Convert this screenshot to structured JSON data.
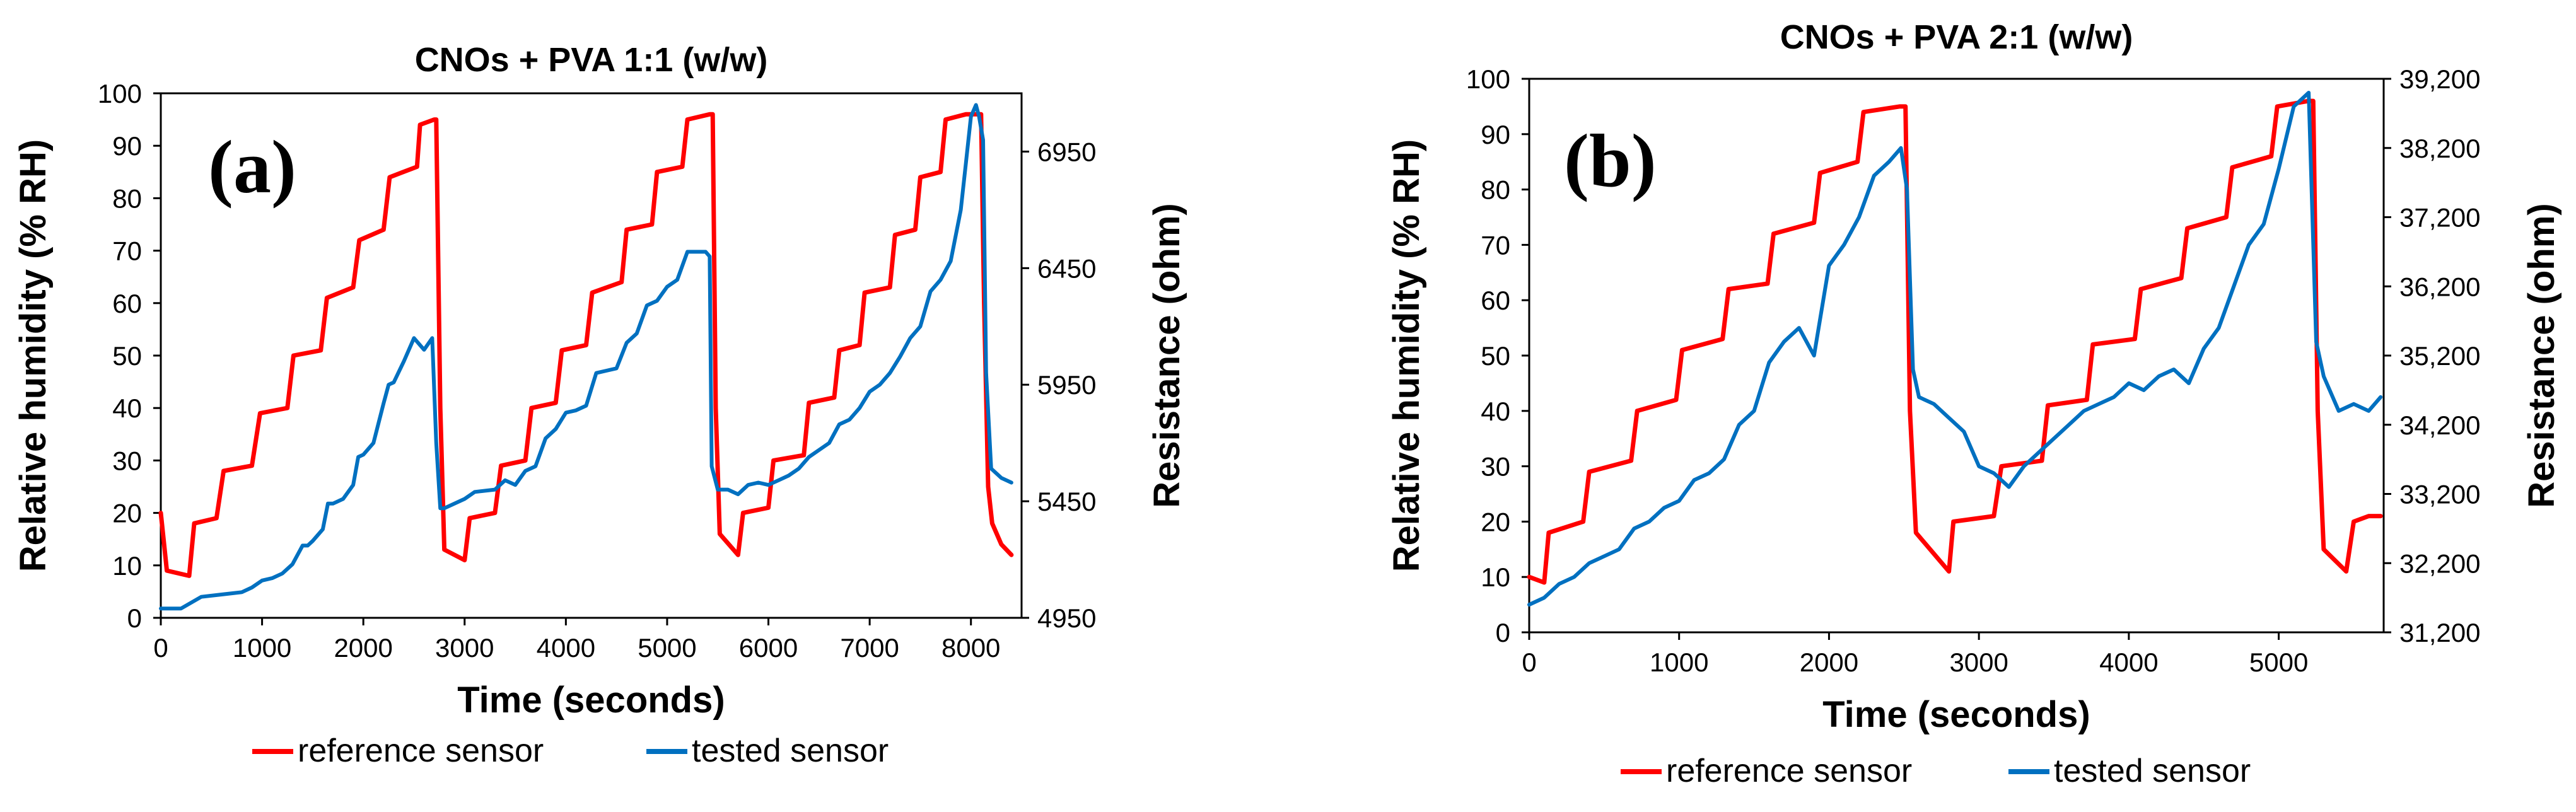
{
  "chart_data": [
    {
      "type": "line",
      "panel_label": "(a)",
      "title": "CNOs + PVA 1:1 (w/w)",
      "xlabel": "Time (seconds)",
      "ylabel": "Relative humidity (% RH)",
      "y2label": "Resistance (ohm)",
      "xlim": [
        0,
        8500
      ],
      "ylim": [
        0,
        100
      ],
      "y2lim": [
        4950,
        7200
      ],
      "x_ticks": [
        "0",
        "1000",
        "2000",
        "3000",
        "4000",
        "5000",
        "6000",
        "7000",
        "8000"
      ],
      "x_tick_values": [
        0,
        1000,
        2000,
        3000,
        4000,
        5000,
        6000,
        7000,
        8000
      ],
      "y_ticks": [
        "0",
        "10",
        "20",
        "30",
        "40",
        "50",
        "60",
        "70",
        "80",
        "90",
        "100"
      ],
      "y_tick_values": [
        0,
        10,
        20,
        30,
        40,
        50,
        60,
        70,
        80,
        90,
        100
      ],
      "y2_ticks": [
        "4950",
        "5450",
        "5950",
        "6450",
        "6950"
      ],
      "y2_tick_values": [
        4950,
        5450,
        5950,
        6450,
        6950
      ],
      "legend": [
        "reference sensor",
        "tested sensor"
      ],
      "legend_position": "bottom",
      "grid": false,
      "series": [
        {
          "name": "reference sensor",
          "axis": "left",
          "color": "#ff0000",
          "x": [
            0,
            60,
            280,
            330,
            550,
            620,
            900,
            980,
            1250,
            1310,
            1580,
            1640,
            1900,
            1960,
            2200,
            2260,
            2530,
            2560,
            2700,
            2720,
            2760,
            2800,
            3000,
            3050,
            3300,
            3360,
            3600,
            3660,
            3900,
            3960,
            4200,
            4260,
            4550,
            4600,
            4850,
            4900,
            5150,
            5200,
            5420,
            5450,
            5480,
            5520,
            5700,
            5750,
            6000,
            6050,
            6350,
            6400,
            6650,
            6700,
            6900,
            6950,
            7200,
            7250,
            7450,
            7500,
            7700,
            7750,
            7950,
            8000,
            8100,
            8130,
            8170,
            8210,
            8300,
            8400
          ],
          "y": [
            20,
            9,
            8,
            18,
            19,
            28,
            29,
            39,
            40,
            50,
            51,
            61,
            63,
            72,
            74,
            84,
            86,
            94,
            95,
            95,
            40,
            13,
            11,
            19,
            20,
            29,
            30,
            40,
            41,
            51,
            52,
            62,
            64,
            74,
            75,
            85,
            86,
            95,
            96,
            96,
            40,
            16,
            12,
            20,
            21,
            30,
            31,
            41,
            42,
            51,
            52,
            62,
            63,
            73,
            74,
            84,
            85,
            95,
            96,
            96,
            96,
            60,
            25,
            18,
            14,
            12
          ]
        },
        {
          "name": "tested sensor",
          "axis": "right",
          "color": "#0070c0",
          "x": [
            0,
            200,
            400,
            600,
            800,
            900,
            1000,
            1100,
            1200,
            1300,
            1400,
            1450,
            1500,
            1600,
            1650,
            1700,
            1800,
            1900,
            1950,
            2000,
            2100,
            2200,
            2250,
            2300,
            2400,
            2500,
            2600,
            2680,
            2720,
            2760,
            2800,
            3000,
            3100,
            3300,
            3400,
            3500,
            3600,
            3700,
            3800,
            3900,
            4000,
            4100,
            4200,
            4300,
            4400,
            4500,
            4600,
            4700,
            4800,
            4900,
            5000,
            5100,
            5200,
            5300,
            5380,
            5420,
            5440,
            5500,
            5600,
            5700,
            5800,
            5900,
            6000,
            6100,
            6200,
            6300,
            6400,
            6500,
            6600,
            6700,
            6800,
            6900,
            7000,
            7100,
            7200,
            7300,
            7400,
            7500,
            7600,
            7700,
            7800,
            7900,
            7950,
            8000,
            8050,
            8080,
            8120,
            8150,
            8200,
            8300,
            8400
          ],
          "y": [
            4990,
            4990,
            5040,
            5050,
            5060,
            5080,
            5110,
            5120,
            5140,
            5180,
            5260,
            5260,
            5280,
            5330,
            5440,
            5440,
            5460,
            5520,
            5640,
            5650,
            5700,
            5870,
            5950,
            5960,
            6050,
            6150,
            6100,
            6150,
            5700,
            5420,
            5420,
            5460,
            5490,
            5500,
            5540,
            5520,
            5580,
            5600,
            5720,
            5760,
            5830,
            5840,
            5860,
            6000,
            6010,
            6020,
            6130,
            6170,
            6290,
            6310,
            6370,
            6400,
            6520,
            6520,
            6520,
            6500,
            5600,
            5500,
            5500,
            5480,
            5520,
            5530,
            5520,
            5540,
            5560,
            5590,
            5640,
            5670,
            5700,
            5780,
            5800,
            5850,
            5920,
            5950,
            6000,
            6070,
            6150,
            6200,
            6350,
            6400,
            6480,
            6700,
            6900,
            7100,
            7150,
            7100,
            7000,
            6000,
            5590,
            5550,
            5530
          ]
        }
      ]
    },
    {
      "type": "line",
      "panel_label": "(b)",
      "title": "CNOs + PVA 2:1 (w/w)",
      "xlabel": "Time (seconds)",
      "ylabel": "Relative humidity (% RH)",
      "y2label": "Resistance (ohm)",
      "xlim": [
        0,
        5700
      ],
      "ylim": [
        0,
        100
      ],
      "y2lim": [
        31200,
        39200
      ],
      "x_ticks": [
        "0",
        "1000",
        "2000",
        "3000",
        "4000",
        "5000"
      ],
      "x_tick_values": [
        0,
        1000,
        2000,
        3000,
        4000,
        5000
      ],
      "y_ticks": [
        "0",
        "10",
        "20",
        "30",
        "40",
        "50",
        "60",
        "70",
        "80",
        "90",
        "100"
      ],
      "y_tick_values": [
        0,
        10,
        20,
        30,
        40,
        50,
        60,
        70,
        80,
        90,
        100
      ],
      "y2_ticks": [
        "31,200",
        "32,200",
        "33,200",
        "34,200",
        "35,200",
        "36,200",
        "37,200",
        "38,200",
        "39,200"
      ],
      "y2_tick_values": [
        31200,
        32200,
        33200,
        34200,
        35200,
        36200,
        37200,
        38200,
        39200
      ],
      "legend": [
        "reference sensor",
        "tested sensor"
      ],
      "legend_position": "bottom",
      "grid": false,
      "series": [
        {
          "name": "reference sensor",
          "axis": "left",
          "color": "#ff0000",
          "x": [
            0,
            100,
            130,
            360,
            400,
            680,
            720,
            980,
            1020,
            1290,
            1330,
            1590,
            1630,
            1900,
            1940,
            2190,
            2230,
            2470,
            2510,
            2540,
            2580,
            2800,
            2830,
            3100,
            3150,
            3420,
            3460,
            3720,
            3760,
            4040,
            4080,
            4350,
            4390,
            4650,
            4690,
            4950,
            4990,
            5200,
            5230,
            5260,
            5300,
            5450,
            5500,
            5600,
            5680
          ],
          "y": [
            10,
            9,
            18,
            20,
            29,
            31,
            40,
            42,
            51,
            53,
            62,
            63,
            72,
            74,
            83,
            85,
            94,
            95,
            95,
            40,
            18,
            11,
            20,
            21,
            30,
            31,
            41,
            42,
            52,
            53,
            62,
            64,
            73,
            75,
            84,
            86,
            95,
            96,
            96,
            40,
            15,
            11,
            20,
            21,
            21
          ]
        },
        {
          "name": "tested sensor",
          "axis": "right",
          "color": "#0070c0",
          "x": [
            0,
            100,
            200,
            300,
            400,
            500,
            600,
            700,
            800,
            900,
            1000,
            1100,
            1200,
            1300,
            1400,
            1500,
            1600,
            1700,
            1800,
            1900,
            2000,
            2100,
            2200,
            2300,
            2400,
            2480,
            2520,
            2560,
            2600,
            2700,
            2800,
            2900,
            3000,
            3100,
            3200,
            3300,
            3400,
            3500,
            3600,
            3700,
            3800,
            3900,
            4000,
            4100,
            4200,
            4300,
            4400,
            4500,
            4600,
            4700,
            4800,
            4900,
            5000,
            5100,
            5150,
            5200,
            5250,
            5300,
            5400,
            5500,
            5600,
            5680
          ],
          "y": [
            31600,
            31700,
            31900,
            32000,
            32200,
            32300,
            32400,
            32700,
            32800,
            33000,
            33100,
            33400,
            33500,
            33700,
            34200,
            34400,
            35100,
            35400,
            35600,
            35200,
            36500,
            36800,
            37200,
            37800,
            38000,
            38200,
            37600,
            35000,
            34600,
            34500,
            34300,
            34100,
            33600,
            33500,
            33300,
            33600,
            33800,
            34000,
            34200,
            34400,
            34500,
            34600,
            34800,
            34700,
            34900,
            35000,
            34800,
            35300,
            35600,
            36200,
            36800,
            37100,
            37900,
            38800,
            38900,
            39000,
            35400,
            34900,
            34400,
            34500,
            34400,
            34600
          ]
        }
      ]
    }
  ]
}
